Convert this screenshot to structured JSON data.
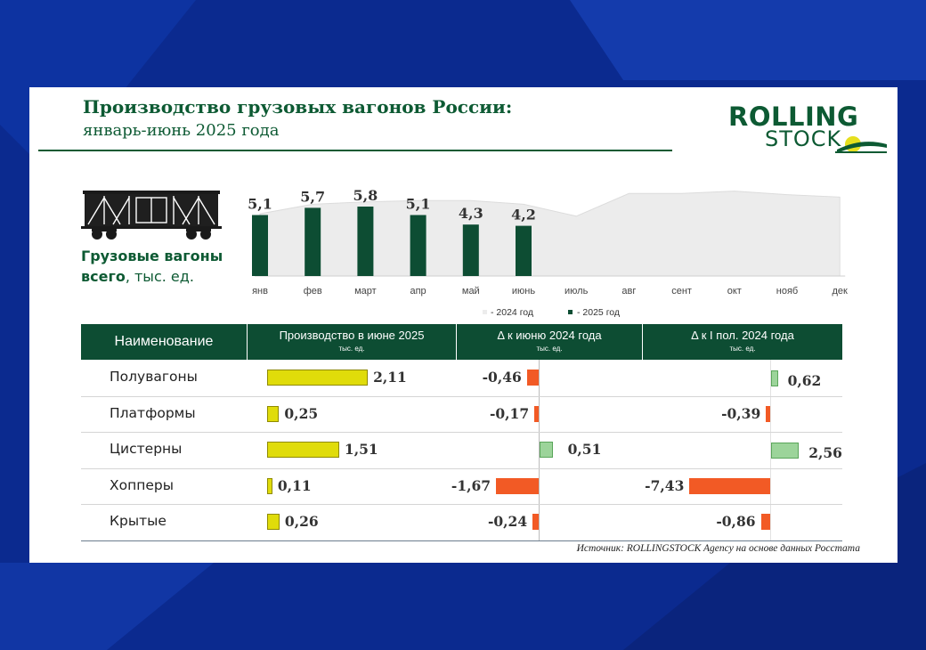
{
  "colors": {
    "page_bg": "#0b2a8f",
    "brand_green": "#0d5a33",
    "bar_2025": "#0d4d33",
    "area_2024": "#ececec",
    "prod_bar": "#e0dc0a",
    "neg_bar": "#f25a25",
    "pos_bar": "#9cd49a"
  },
  "header": {
    "title": "Производство грузовых вагонов России:",
    "subtitle": "январь-июнь 2025 года"
  },
  "logo": {
    "line1": "ROLLING",
    "line2": "STOCK",
    "icon": "train-sun-icon"
  },
  "caption": {
    "line1": "Грузовые вагоны",
    "line2_bold": "всего",
    "line2_rest": ", тыс. ед.",
    "icon": "freight-wagon-icon"
  },
  "table": {
    "headers": [
      {
        "title": "Наименование",
        "unit": ""
      },
      {
        "title": "Производство в июне 2025",
        "unit": "тыс. ед."
      },
      {
        "title": "Δ    к  июню 2024 года",
        "unit": "тыс. ед."
      },
      {
        "title": "Δ к I пол. 2024 года",
        "unit": "тыс. ед."
      }
    ],
    "rows": [
      {
        "name": "Полувагоны",
        "production": "2,11",
        "delta_june": "-0,46",
        "delta_h1": "0,62"
      },
      {
        "name": "Платформы",
        "production": "0,25",
        "delta_june": "-0,17",
        "delta_h1": "-0,39"
      },
      {
        "name": "Цистерны",
        "production": "1,51",
        "delta_june": "0,51",
        "delta_h1": "2,56"
      },
      {
        "name": "Хопперы",
        "production": "0,11",
        "delta_june": "-1,67",
        "delta_h1": "-7,43"
      },
      {
        "name": "Крытые",
        "production": "0,26",
        "delta_june": "-0,24",
        "delta_h1": "-0,86"
      }
    ]
  },
  "source": "Источник: ROLLINGSTOCK Agency на основе данных Росстата",
  "chart_data": [
    {
      "type": "bar",
      "categories": [
        "янв",
        "фев",
        "март",
        "апр",
        "май",
        "июнь",
        "июль",
        "авг",
        "сент",
        "окт",
        "нояб",
        "дек"
      ],
      "series": [
        {
          "name": "- 2024 год",
          "chart_type": "area",
          "values": [
            5.2,
            6.0,
            6.2,
            6.3,
            6.3,
            6.0,
            5.0,
            6.9,
            6.9,
            7.1,
            6.8,
            6.6
          ]
        },
        {
          "name": "- 2025 год",
          "chart_type": "bar",
          "values": [
            5.1,
            5.7,
            5.8,
            5.1,
            4.3,
            4.2,
            null,
            null,
            null,
            null,
            null,
            null
          ],
          "labels": [
            "5,1",
            "5,7",
            "5,8",
            "5,1",
            "4,3",
            "4,2"
          ]
        }
      ],
      "title": "",
      "xlabel": "",
      "ylabel": "",
      "ylim": [
        0,
        10
      ],
      "grid": false,
      "legend_position": "bottom"
    },
    {
      "type": "bar",
      "categories": [
        "Полувагоны",
        "Платформы",
        "Цистерны",
        "Хопперы",
        "Крытые"
      ],
      "series": [
        {
          "name": "Производство в июне 2025",
          "values": [
            2.11,
            0.25,
            1.51,
            0.11,
            0.26
          ]
        },
        {
          "name": "Δ    к  июню 2024 года",
          "values": [
            -0.46,
            -0.17,
            0.51,
            -1.67,
            -0.24
          ]
        },
        {
          "name": "Δ к I пол. 2024 года",
          "values": [
            0.62,
            -0.39,
            2.56,
            -7.43,
            -0.86
          ]
        }
      ],
      "title": "",
      "xlabel": "",
      "ylabel": "",
      "unit": "тыс. ед."
    }
  ]
}
